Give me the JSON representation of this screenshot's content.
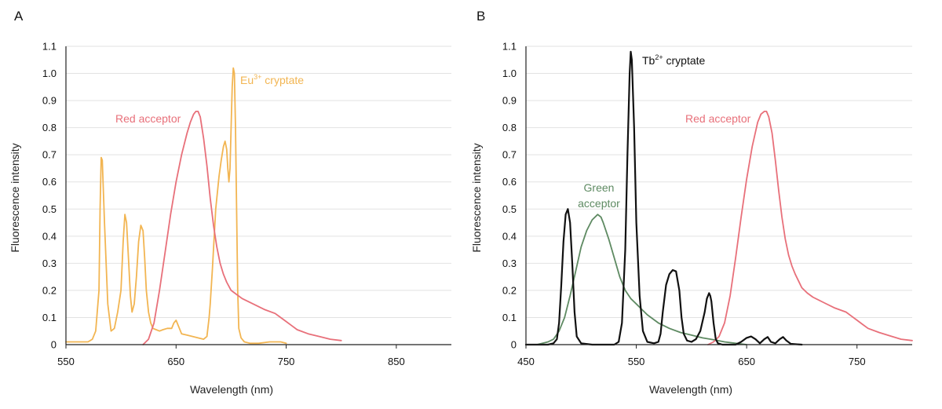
{
  "chart_data": [
    {
      "panel_label": "A",
      "type": "line",
      "xlabel": "Wavelength (nm)",
      "ylabel": "Fluorescence intensity",
      "xlim": [
        550,
        900
      ],
      "ylim": [
        0,
        1.1
      ],
      "x_ticks": [
        "550",
        "650",
        "750",
        "850"
      ],
      "x_tick_values": [
        550,
        650,
        750,
        850
      ],
      "y_ticks": [
        "0",
        "0.1",
        "0.2",
        "0.3",
        "0.4",
        "0.5",
        "0.6",
        "0.7",
        "0.8",
        "0.9",
        "1.0",
        "1.1"
      ],
      "y_tick_values": [
        0,
        0.1,
        0.2,
        0.3,
        0.4,
        0.5,
        0.6,
        0.7,
        0.8,
        0.9,
        1.0,
        1.1
      ],
      "grid": true,
      "series": [
        {
          "name": "Eu³⁺ cryptate",
          "color": "#f2b552",
          "x": [
            550,
            570,
            574,
            577,
            580,
            581,
            582,
            583,
            585,
            588,
            591,
            594,
            597,
            600,
            602,
            603.5,
            605,
            607,
            608.5,
            610,
            612,
            614,
            616,
            618,
            620,
            621.5,
            623,
            625,
            627,
            629,
            632,
            635,
            638,
            642,
            646,
            648,
            650,
            652,
            655,
            660,
            665,
            670,
            675,
            678,
            680,
            681,
            683,
            686,
            689,
            691,
            693,
            694.5,
            696,
            697,
            698,
            699,
            700,
            701,
            702,
            703,
            704,
            705,
            706,
            707,
            709,
            712,
            717,
            725,
            735,
            745,
            750
          ],
          "values": [
            0.01,
            0.01,
            0.02,
            0.05,
            0.2,
            0.5,
            0.69,
            0.68,
            0.45,
            0.15,
            0.05,
            0.06,
            0.12,
            0.2,
            0.38,
            0.48,
            0.45,
            0.3,
            0.18,
            0.12,
            0.15,
            0.25,
            0.38,
            0.44,
            0.42,
            0.32,
            0.2,
            0.12,
            0.08,
            0.06,
            0.055,
            0.05,
            0.055,
            0.06,
            0.06,
            0.08,
            0.09,
            0.07,
            0.04,
            0.035,
            0.03,
            0.025,
            0.02,
            0.03,
            0.1,
            0.15,
            0.28,
            0.5,
            0.62,
            0.68,
            0.73,
            0.75,
            0.72,
            0.65,
            0.6,
            0.65,
            0.8,
            0.95,
            1.02,
            1.0,
            0.8,
            0.5,
            0.2,
            0.06,
            0.025,
            0.01,
            0.005,
            0.005,
            0.01,
            0.01,
            0.005
          ]
        },
        {
          "name": "Red acceptor",
          "color": "#e8707a",
          "x": [
            620,
            625,
            630,
            635,
            640,
            645,
            650,
            655,
            660,
            663,
            666,
            668,
            670,
            672,
            675,
            678,
            681,
            684,
            687,
            690,
            693,
            696,
            700,
            705,
            710,
            720,
            730,
            740,
            745,
            750,
            755,
            760,
            770,
            780,
            790,
            800
          ],
          "values": [
            0.0,
            0.02,
            0.08,
            0.2,
            0.34,
            0.48,
            0.6,
            0.7,
            0.78,
            0.82,
            0.85,
            0.86,
            0.86,
            0.84,
            0.76,
            0.66,
            0.54,
            0.44,
            0.36,
            0.3,
            0.26,
            0.23,
            0.2,
            0.185,
            0.17,
            0.15,
            0.13,
            0.115,
            0.1,
            0.085,
            0.07,
            0.055,
            0.04,
            0.03,
            0.02,
            0.015
          ]
        }
      ],
      "annotations": [
        {
          "text": "Red acceptor",
          "color": "#e8707a"
        },
        {
          "text_main": "Eu",
          "text_sup": "3+",
          "text_tail": " cryptate",
          "color": "#f2b552"
        }
      ]
    },
    {
      "panel_label": "B",
      "type": "line",
      "xlabel": "Wavelength (nm)",
      "ylabel": "Fluorescence intensity",
      "xlim": [
        450,
        800
      ],
      "ylim": [
        0,
        1.1
      ],
      "x_ticks": [
        "450",
        "550",
        "650",
        "750"
      ],
      "x_tick_values": [
        450,
        550,
        650,
        750
      ],
      "y_ticks": [
        "0",
        "0.1",
        "0.2",
        "0.3",
        "0.4",
        "0.5",
        "0.6",
        "0.7",
        "0.8",
        "0.9",
        "1.0",
        "1.1"
      ],
      "y_tick_values": [
        0,
        0.1,
        0.2,
        0.3,
        0.4,
        0.5,
        0.6,
        0.7,
        0.8,
        0.9,
        1.0,
        1.1
      ],
      "grid": true,
      "series": [
        {
          "name": "Green acceptor",
          "color": "#5e8a62",
          "x": [
            460,
            470,
            475,
            480,
            485,
            490,
            495,
            500,
            505,
            510,
            515,
            518,
            520,
            525,
            530,
            535,
            540,
            545,
            550,
            555,
            560,
            570,
            580,
            590,
            600,
            610,
            620,
            630,
            640,
            650
          ],
          "values": [
            0.0,
            0.01,
            0.02,
            0.05,
            0.1,
            0.18,
            0.27,
            0.36,
            0.42,
            0.46,
            0.48,
            0.47,
            0.45,
            0.39,
            0.32,
            0.25,
            0.2,
            0.17,
            0.15,
            0.13,
            0.11,
            0.08,
            0.06,
            0.045,
            0.035,
            0.025,
            0.018,
            0.01,
            0.005,
            0.0
          ]
        },
        {
          "name": "Red acceptor",
          "color": "#e8707a",
          "x": [
            615,
            620,
            625,
            630,
            635,
            640,
            645,
            650,
            655,
            660,
            663,
            666,
            668,
            670,
            673,
            676,
            679,
            682,
            685,
            688,
            691,
            694,
            697,
            700,
            705,
            710,
            720,
            730,
            740,
            745,
            750,
            755,
            760,
            770,
            780,
            790,
            800
          ],
          "values": [
            0.0,
            0.01,
            0.03,
            0.08,
            0.18,
            0.32,
            0.47,
            0.61,
            0.73,
            0.82,
            0.85,
            0.86,
            0.86,
            0.84,
            0.78,
            0.68,
            0.57,
            0.47,
            0.39,
            0.33,
            0.29,
            0.26,
            0.235,
            0.21,
            0.19,
            0.175,
            0.155,
            0.135,
            0.12,
            0.105,
            0.09,
            0.075,
            0.06,
            0.045,
            0.032,
            0.02,
            0.015
          ]
        },
        {
          "name": "Tb²⁺ cryptate",
          "color": "#111111",
          "x": [
            450,
            470,
            475,
            478,
            480,
            482,
            484,
            486,
            488,
            490,
            492,
            494,
            496,
            500,
            510,
            520,
            530,
            534,
            537,
            540,
            542,
            544,
            545,
            546,
            548,
            550,
            553,
            556,
            560,
            566,
            570,
            572,
            574,
            577,
            580,
            583,
            586,
            589,
            591,
            593,
            596,
            600,
            604,
            608,
            612,
            614,
            616,
            617,
            618,
            620,
            622,
            624,
            628,
            640,
            645,
            650,
            654,
            658,
            662,
            666,
            669,
            672,
            676,
            680,
            683,
            686,
            690,
            700
          ],
          "values": [
            0.0,
            0.0,
            0.005,
            0.02,
            0.08,
            0.22,
            0.38,
            0.48,
            0.5,
            0.45,
            0.3,
            0.12,
            0.03,
            0.005,
            0.0,
            0.0,
            0.0,
            0.01,
            0.08,
            0.35,
            0.7,
            1.0,
            1.08,
            1.05,
            0.8,
            0.45,
            0.18,
            0.05,
            0.01,
            0.005,
            0.01,
            0.04,
            0.12,
            0.22,
            0.26,
            0.275,
            0.27,
            0.2,
            0.1,
            0.04,
            0.015,
            0.01,
            0.02,
            0.05,
            0.12,
            0.17,
            0.19,
            0.18,
            0.16,
            0.08,
            0.02,
            0.005,
            0.0,
            0.0,
            0.01,
            0.025,
            0.03,
            0.02,
            0.005,
            0.02,
            0.028,
            0.01,
            0.005,
            0.02,
            0.028,
            0.015,
            0.003,
            0.0
          ]
        }
      ],
      "annotations": [
        {
          "text_main": "Tb",
          "text_sup": "2+",
          "text_tail": " cryptate",
          "color": "#111111"
        },
        {
          "text_line1": "Green",
          "text_line2": "acceptor",
          "color": "#5e8a62"
        },
        {
          "text": "Red acceptor",
          "color": "#e8707a"
        }
      ]
    }
  ]
}
